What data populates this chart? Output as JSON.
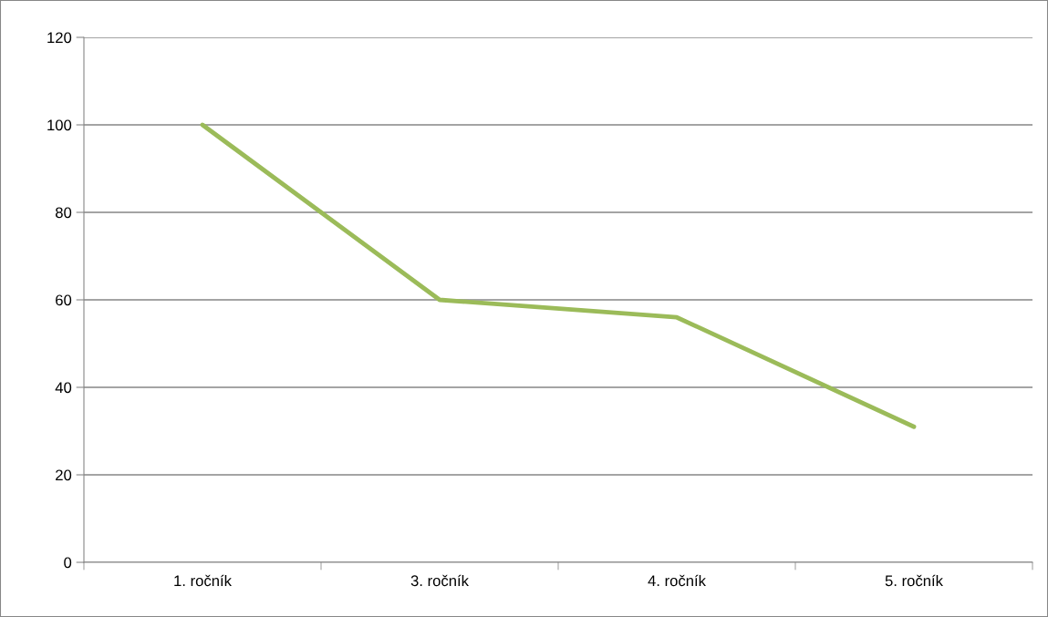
{
  "chart_data": {
    "type": "line",
    "categories": [
      "1. ročník",
      "3. ročník",
      "4. ročník",
      "5. ročník"
    ],
    "series": [
      {
        "color": "#9bbb59",
        "values": [
          100,
          60,
          56,
          31
        ]
      }
    ],
    "ylim": [
      0,
      120
    ],
    "yticks": [
      0,
      20,
      40,
      60,
      80,
      100,
      120
    ],
    "grid": "y",
    "legend": false
  }
}
